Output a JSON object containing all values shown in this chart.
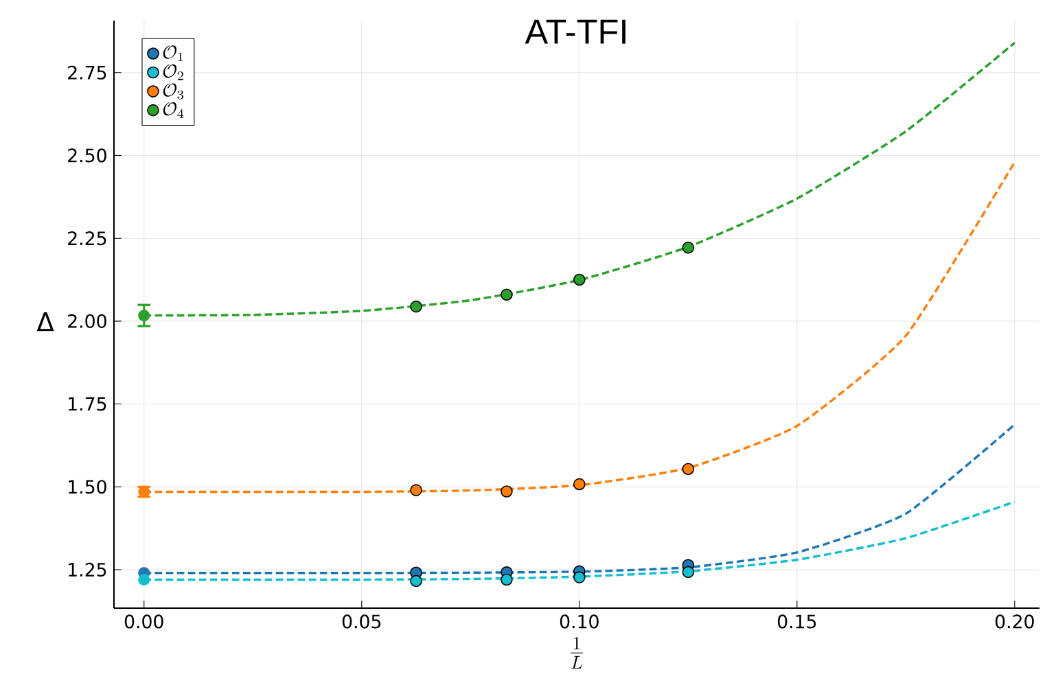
{
  "chart_data": {
    "type": "scatter",
    "title": "AT-TFI",
    "xlabel": "\\frac{1}{L}",
    "ylabel": "Δ",
    "xlim": [
      -0.0069,
      0.2057
    ],
    "ylim": [
      1.134,
      2.907
    ],
    "xticks": [
      {
        "value": 0,
        "label": "0.00"
      },
      {
        "value": 0.05,
        "label": "0.05"
      },
      {
        "value": 0.1,
        "label": "0.10"
      },
      {
        "value": 0.15,
        "label": "0.15"
      },
      {
        "value": 0.2,
        "label": "0.20"
      }
    ],
    "yticks": [
      {
        "value": 1.25,
        "label": "1.25"
      },
      {
        "value": 1.5,
        "label": "1.50"
      },
      {
        "value": 1.75,
        "label": "1.75"
      },
      {
        "value": 2.0,
        "label": "2.00"
      },
      {
        "value": 2.25,
        "label": "2.25"
      },
      {
        "value": 2.5,
        "label": "2.50"
      },
      {
        "value": 2.75,
        "label": "2.75"
      }
    ],
    "grid": true,
    "legend": "top left",
    "series": [
      {
        "name": "\\mathcal{O}_1",
        "marker": "circle",
        "color": "#1f77b4",
        "x": [
          0.0625,
          0.0833,
          0.1,
          0.125
        ],
        "values": [
          1.241,
          1.242,
          1.245,
          1.264
        ]
      },
      {
        "name": "\\mathcal{O}_2",
        "marker": "circle",
        "color": "#17becf",
        "x": [
          0.0625,
          0.0833,
          0.1,
          0.125
        ],
        "values": [
          1.216,
          1.22,
          1.227,
          1.243
        ]
      },
      {
        "name": "\\mathcal{O}_3",
        "marker": "circle",
        "color": "#ff7f0e",
        "x": [
          0.0625,
          0.0833,
          0.1,
          0.125
        ],
        "values": [
          1.49,
          1.486,
          1.508,
          1.554
        ]
      },
      {
        "name": "\\mathcal{O}_4",
        "marker": "circle",
        "color": "#2ca02c",
        "x": [
          0.0625,
          0.0833,
          0.1,
          0.125
        ],
        "values": [
          2.044,
          2.08,
          2.125,
          2.222
        ]
      },
      {
        "marker": "circle",
        "color": "#1f77b4",
        "x": [
          0
        ],
        "values": [
          1.24
        ]
      },
      {
        "marker": "circle",
        "color": "#17becf",
        "x": [
          0
        ],
        "values": [
          1.22
        ]
      },
      {
        "marker": "circle",
        "color": "#ff7f0e",
        "x": [
          0
        ],
        "values": [
          1.485
        ],
        "errors": [
          0.015
        ]
      },
      {
        "marker": "circle",
        "color": "#2ca02c",
        "x": [
          0
        ],
        "values": [
          2.017
        ],
        "errors": [
          0.032
        ]
      },
      {
        "type": "line",
        "line_style": "dashed",
        "marker": "none",
        "color": "#1f77b4",
        "x": [
          0,
          0.025,
          0.05,
          0.075,
          0.1,
          0.125,
          0.15,
          0.175,
          0.2
        ],
        "values": [
          1.24,
          1.24,
          1.24,
          1.241,
          1.244,
          1.257,
          1.302,
          1.419,
          1.688
        ]
      },
      {
        "type": "line",
        "line_style": "dashed",
        "marker": "none",
        "color": "#17becf",
        "x": [
          0,
          0.025,
          0.05,
          0.075,
          0.1,
          0.125,
          0.15,
          0.175,
          0.2
        ],
        "values": [
          1.22,
          1.22,
          1.22,
          1.222,
          1.229,
          1.245,
          1.28,
          1.345,
          1.455
        ]
      },
      {
        "type": "line",
        "line_style": "dashed",
        "marker": "none",
        "color": "#ff7f0e",
        "x": [
          0,
          0.025,
          0.05,
          0.075,
          0.1,
          0.125,
          0.15,
          0.175,
          0.2
        ],
        "values": [
          1.485,
          1.485,
          1.485,
          1.489,
          1.505,
          1.557,
          1.684,
          1.956,
          2.48
        ]
      },
      {
        "type": "line",
        "line_style": "dashed",
        "marker": "none",
        "color": "#2ca02c",
        "x": [
          0,
          0.025,
          0.05,
          0.075,
          0.1,
          0.125,
          0.15,
          0.175,
          0.2
        ],
        "values": [
          2.017,
          2.019,
          2.031,
          2.063,
          2.124,
          2.224,
          2.37,
          2.573,
          2.84
        ]
      }
    ]
  }
}
